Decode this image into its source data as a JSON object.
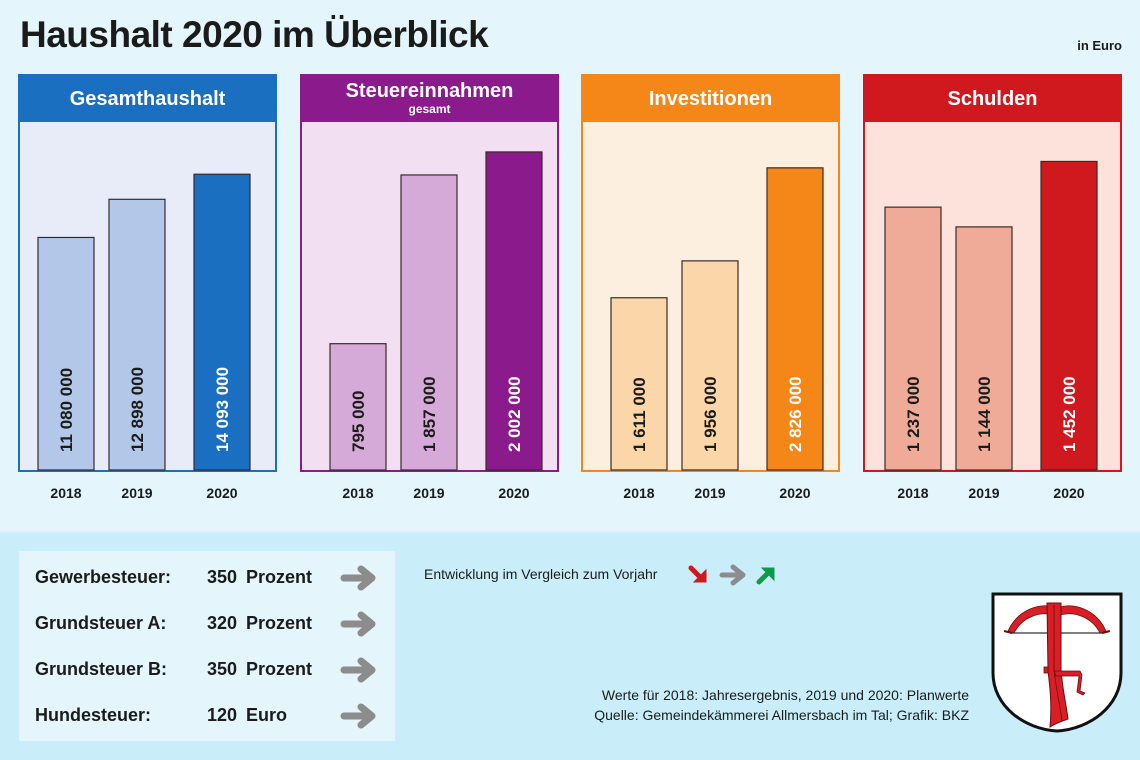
{
  "header": {
    "title": "Haushalt 2020 im Überblick",
    "unit": "in Euro"
  },
  "colors": {
    "page_bg": "#e4f5fc",
    "bottom_bg": "#caeef9",
    "blue": "#1a6fc0",
    "purple": "#8b1a8c",
    "orange": "#f58718",
    "red": "#d0191f",
    "trend_down": "#d0191f",
    "trend_flat": "#8c8c8c",
    "trend_up": "#0f9a4a"
  },
  "chart_data": [
    {
      "type": "bar",
      "title": "Gesamthaushalt",
      "subtitle": "",
      "categories": [
        "2018",
        "2019",
        "2020"
      ],
      "values": [
        11080000,
        12898000,
        14093000
      ],
      "labels": [
        "11 080 000",
        "12 898 000",
        "14 093 000"
      ],
      "ylim": [
        0,
        16200000
      ],
      "unit": "Euro",
      "xlabel": "",
      "ylabel": "",
      "grid": false,
      "header_color": "#1a6fc0",
      "panel_bg": "#e7ecf8",
      "bar_light": "#b3c7e8",
      "bar_dark": "#1a6fc0"
    },
    {
      "type": "bar",
      "title": "Steuereinnahmen",
      "subtitle": "gesamt",
      "categories": [
        "2018",
        "2019",
        "2020"
      ],
      "values": [
        795000,
        1857000,
        2002000
      ],
      "labels": [
        "795 000",
        "1 857 000",
        "2 002 000"
      ],
      "ylim": [
        0,
        2140000
      ],
      "unit": "Euro",
      "xlabel": "",
      "ylabel": "",
      "grid": false,
      "header_color": "#8b1a8c",
      "panel_bg": "#f2e0f2",
      "bar_light": "#d6aad8",
      "bar_dark": "#8b1a8c"
    },
    {
      "type": "bar",
      "title": "Investitionen",
      "subtitle": "",
      "categories": [
        "2018",
        "2019",
        "2020"
      ],
      "values": [
        1611000,
        1956000,
        2826000
      ],
      "labels": [
        "1 611 000",
        "1 956 000",
        "2 826 000"
      ],
      "ylim": [
        0,
        3180000
      ],
      "unit": "Euro",
      "xlabel": "",
      "ylabel": "",
      "grid": false,
      "header_color": "#f58718",
      "panel_bg": "#fdefe0",
      "bar_light": "#fbd6a8",
      "bar_dark": "#f58718"
    },
    {
      "type": "bar",
      "title": "Schulden",
      "subtitle": "",
      "categories": [
        "2018",
        "2019",
        "2020"
      ],
      "values": [
        1237000,
        1144000,
        1452000
      ],
      "labels": [
        "1 237 000",
        "1 144 000",
        "1 452 000"
      ],
      "ylim": [
        0,
        1600000
      ],
      "unit": "Euro",
      "xlabel": "",
      "ylabel": "",
      "grid": false,
      "header_color": "#d0191f",
      "panel_bg": "#fce2da",
      "bar_light": "#efab98",
      "bar_dark": "#d0191f"
    }
  ],
  "taxes": [
    {
      "name": "Gewerbesteuer:",
      "value": "350",
      "unit": "Prozent",
      "trend": "flat"
    },
    {
      "name": "Grundsteuer A:",
      "value": "320",
      "unit": "Prozent",
      "trend": "flat"
    },
    {
      "name": "Grundsteuer B:",
      "value": "350",
      "unit": "Prozent",
      "trend": "flat"
    },
    {
      "name": "Hundesteuer:",
      "value": "120",
      "unit": "Euro",
      "trend": "flat"
    }
  ],
  "legend": {
    "text": "Entwicklung im Vergleich zum Vorjahr",
    "icons": [
      "arrow-down-right-icon",
      "arrow-right-icon",
      "arrow-up-right-icon"
    ]
  },
  "notes": {
    "line1": "Werte für 2018: Jahresergebnis, 2019 und 2020: Planwerte",
    "line2": "Quelle: Gemeindekämmerei Allmersbach im Tal; Grafik: BKZ"
  },
  "crest": {
    "icon": "coat-of-arms-crossbow-plough-icon"
  }
}
